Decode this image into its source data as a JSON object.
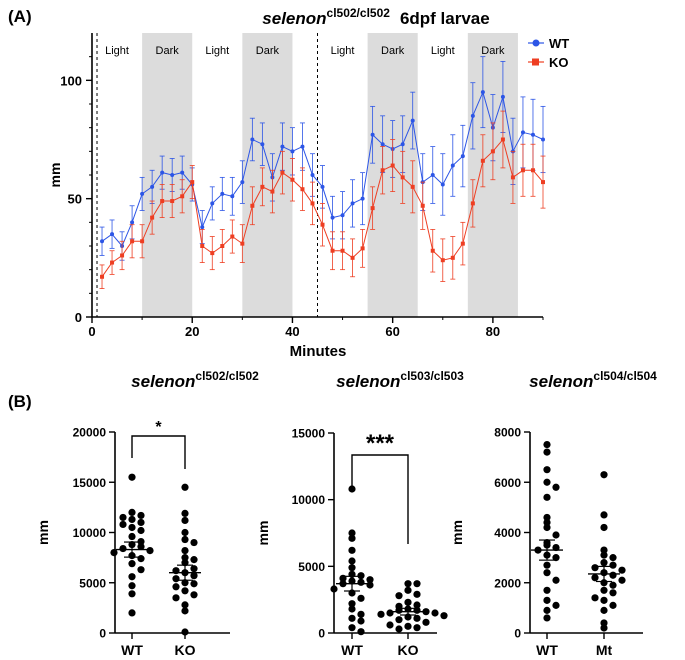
{
  "panel_a_label": "(A)",
  "panel_b_label": "(B)",
  "chart_data": [
    {
      "type": "line",
      "title_gene": "selenon",
      "title_genotype": "cl502/cl502",
      "title_suffix": "6dpf larvae",
      "xlabel": "Minutes",
      "ylabel": "mm",
      "xlim": [
        0,
        90
      ],
      "ylim": [
        0,
        120
      ],
      "xticks": [
        0,
        20,
        40,
        60,
        80
      ],
      "yticks": [
        0,
        50,
        100
      ],
      "phases": [
        {
          "label": "Light",
          "start": 0,
          "end": 10
        },
        {
          "label": "Dark",
          "start": 10,
          "end": 20
        },
        {
          "label": "Light",
          "start": 20,
          "end": 30
        },
        {
          "label": "Dark",
          "start": 30,
          "end": 40
        },
        {
          "label": "Light",
          "start": 45,
          "end": 55
        },
        {
          "label": "Dark",
          "start": 55,
          "end": 65
        },
        {
          "label": "Light",
          "start": 65,
          "end": 75
        },
        {
          "label": "Dark",
          "start": 75,
          "end": 85
        }
      ],
      "dashed_lines": [
        1,
        45
      ],
      "legend": "top-right",
      "x": [
        2,
        4,
        6,
        8,
        10,
        12,
        14,
        16,
        18,
        20,
        22,
        24,
        26,
        28,
        30,
        32,
        34,
        36,
        38,
        40,
        42,
        44,
        46,
        48,
        50,
        52,
        54,
        56,
        58,
        60,
        62,
        64,
        66,
        68,
        70,
        72,
        74,
        76,
        78,
        80,
        82,
        84,
        86,
        88,
        90
      ],
      "series": [
        {
          "name": "WT",
          "color": "#2c55e6",
          "marker": "circle",
          "values": [
            32,
            35,
            30,
            40,
            52,
            55,
            61,
            60,
            61,
            56,
            38,
            48,
            52,
            51,
            57,
            75,
            73,
            59,
            72,
            70,
            72,
            60,
            55,
            42,
            43,
            48,
            50,
            77,
            73,
            71,
            73,
            83,
            57,
            60,
            56,
            64,
            68,
            85,
            95,
            80,
            93,
            70,
            78,
            77,
            75
          ],
          "errors": [
            6,
            6,
            6,
            7,
            7,
            7,
            7,
            7,
            7,
            7,
            7,
            7,
            7,
            8,
            9,
            9,
            9,
            10,
            10,
            10,
            10,
            9,
            9,
            9,
            10,
            10,
            11,
            12,
            12,
            12,
            12,
            12,
            12,
            12,
            13,
            13,
            13,
            14,
            15,
            14,
            15,
            14,
            15,
            15,
            14
          ]
        },
        {
          "name": "KO",
          "color": "#ee3e22",
          "marker": "square",
          "values": [
            17,
            23,
            26,
            32,
            32,
            42,
            49,
            49,
            51,
            57,
            30,
            27,
            30,
            34,
            31,
            47,
            55,
            53,
            61,
            58,
            54,
            48,
            39,
            28,
            28,
            25,
            29,
            46,
            62,
            64,
            59,
            55,
            47,
            28,
            24,
            25,
            31,
            48,
            66,
            70,
            75,
            59,
            62,
            62,
            57
          ],
          "errors": [
            5,
            5,
            6,
            7,
            7,
            7,
            7,
            7,
            7,
            7,
            7,
            7,
            7,
            7,
            8,
            8,
            8,
            9,
            9,
            9,
            9,
            9,
            9,
            8,
            8,
            8,
            8,
            9,
            10,
            11,
            11,
            11,
            10,
            9,
            9,
            9,
            9,
            10,
            11,
            12,
            12,
            11,
            11,
            11,
            11
          ]
        }
      ]
    },
    {
      "type": "scatter",
      "title_gene": "selenon",
      "title_genotype": "cl502/cl502",
      "ylabel": "mm",
      "ylim": [
        0,
        20000
      ],
      "yticks": [
        0,
        5000,
        10000,
        15000,
        20000
      ],
      "categories": [
        "WT",
        "KO"
      ],
      "significance": "*",
      "groups": [
        {
          "name": "WT",
          "mean": 8300,
          "sem": 750,
          "values": [
            15500,
            12000,
            11700,
            11500,
            11300,
            11000,
            10800,
            10500,
            10200,
            9600,
            9100,
            8800,
            8600,
            8400,
            8200,
            8000,
            7700,
            7400,
            6900,
            6300,
            5600,
            4700,
            3900,
            2000
          ]
        },
        {
          "name": "KO",
          "mean": 6000,
          "sem": 750,
          "values": [
            14500,
            11900,
            11200,
            10000,
            9300,
            9000,
            8200,
            7500,
            7300,
            7000,
            6400,
            6200,
            6000,
            5700,
            5400,
            5000,
            4900,
            4600,
            4200,
            3800,
            3500,
            2800,
            2200,
            100
          ]
        }
      ]
    },
    {
      "type": "scatter",
      "title_gene": "selenon",
      "title_genotype": "cl503/cl503",
      "ylabel": "mm",
      "ylim": [
        0,
        15000
      ],
      "yticks": [
        0,
        5000,
        10000,
        15000
      ],
      "categories": [
        "WT",
        "KO"
      ],
      "significance": "***",
      "groups": [
        {
          "name": "WT",
          "mean": 3700,
          "sem": 550,
          "values": [
            10800,
            7500,
            7100,
            6200,
            5400,
            4900,
            4400,
            4300,
            4100,
            4000,
            3900,
            3800,
            3700,
            3600,
            3300,
            3000,
            2600,
            2200,
            1800,
            1400,
            1100,
            900,
            400,
            100
          ]
        },
        {
          "name": "KO",
          "mean": 1600,
          "sem": 250,
          "values": [
            3700,
            3700,
            3200,
            2900,
            2800,
            2300,
            2100,
            2000,
            1800,
            1700,
            1700,
            1600,
            1500,
            1500,
            1400,
            1300,
            1200,
            1100,
            1000,
            800,
            600,
            500,
            400,
            300
          ]
        }
      ]
    },
    {
      "type": "scatter",
      "title_gene": "selenon",
      "title_genotype": "cl504/cl504",
      "ylabel": "mm",
      "ylim": [
        0,
        8000
      ],
      "yticks": [
        0,
        2000,
        4000,
        6000,
        8000
      ],
      "categories": [
        "WT",
        "Mt"
      ],
      "significance": "",
      "groups": [
        {
          "name": "WT",
          "mean": 3300,
          "sem": 400,
          "values": [
            7500,
            7200,
            6500,
            6000,
            5800,
            5400,
            4600,
            4400,
            4200,
            3900,
            3600,
            3500,
            3400,
            3300,
            3100,
            3000,
            2700,
            2400,
            2100,
            1700,
            1300,
            1100,
            900,
            600
          ]
        },
        {
          "name": "Mt",
          "mean": 2350,
          "sem": 300,
          "values": [
            6300,
            4700,
            4200,
            3300,
            3100,
            3000,
            2800,
            2700,
            2600,
            2500,
            2400,
            2300,
            2200,
            2100,
            2000,
            1900,
            1700,
            1600,
            1400,
            1300,
            1100,
            900,
            400,
            200
          ]
        }
      ]
    }
  ]
}
